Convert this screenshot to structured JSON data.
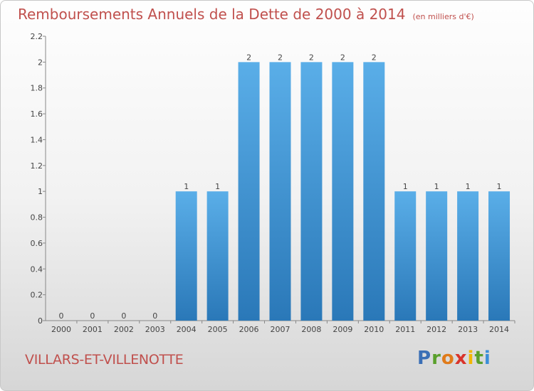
{
  "header": {
    "title": "Remboursements Annuels de la Dette de 2000 à 2014",
    "unit": "(en milliers d'€)"
  },
  "footer": {
    "commune": "VILLARS-ET-VILLENOTTE",
    "logo_letters": [
      {
        "ch": "P",
        "color": "#3b6fb6"
      },
      {
        "ch": "r",
        "color": "#5aa02c"
      },
      {
        "ch": "o",
        "color": "#e07b1a"
      },
      {
        "ch": "x",
        "color": "#d9342b"
      },
      {
        "ch": "i",
        "color": "#f2b705"
      },
      {
        "ch": "t",
        "color": "#5aa02c"
      },
      {
        "ch": "i",
        "color": "#3b8fd9"
      }
    ]
  },
  "colors": {
    "title": "#c0504d",
    "bar_top": "#5aaee8",
    "bar_bottom": "#2a78b8"
  },
  "chart_data": {
    "type": "bar",
    "categories": [
      "2000",
      "2001",
      "2002",
      "2003",
      "2004",
      "2005",
      "2006",
      "2007",
      "2008",
      "2009",
      "2010",
      "2011",
      "2012",
      "2013",
      "2014"
    ],
    "values": [
      0,
      0,
      0,
      0,
      1,
      1,
      2,
      2,
      2,
      2,
      2,
      1,
      1,
      1,
      1
    ],
    "data_labels": [
      "0",
      "0",
      "0",
      "0",
      "1",
      "1",
      "2",
      "2",
      "2",
      "2",
      "2",
      "1",
      "1",
      "1",
      "1"
    ],
    "ylim": [
      0,
      2.2
    ],
    "yticks": [
      0,
      0.2,
      0.4,
      0.6,
      0.8,
      1,
      1.2,
      1.4,
      1.6,
      1.8,
      2,
      2.2
    ],
    "ytick_labels": [
      "0",
      "0.2",
      "0.4",
      "0.6",
      "0.8",
      "1",
      "1.2",
      "1.4",
      "1.6",
      "1.8",
      "2",
      "2.2"
    ],
    "grid": false,
    "legend": "none"
  }
}
